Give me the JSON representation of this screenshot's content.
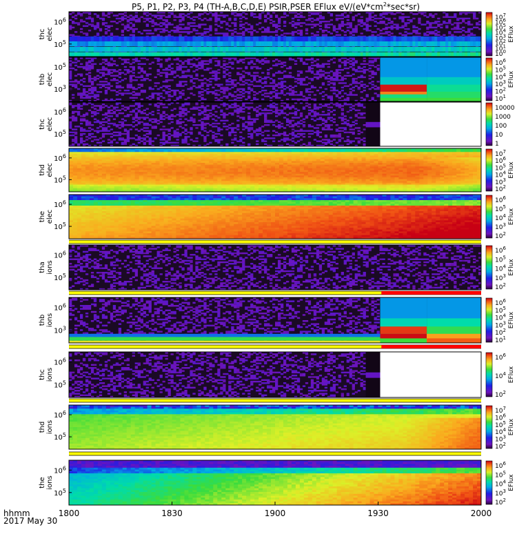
{
  "title": {
    "prefix": "P5, P1, P2, P3, P4 (TH-A,B,C,D,E) PSIR,PSER EFlux eV/(eV*cm",
    "sup": "2",
    "suffix": "*sec*sr)"
  },
  "x_axis": {
    "ticks": [
      "1800",
      "1830",
      "1900",
      "1930",
      "2000"
    ],
    "label_line1": "hhmm",
    "label_line2": "2017 May 30"
  },
  "chart_data": {
    "type": "heatmap",
    "title": "P5, P1, P2, P3, P4 (TH-A,B,C,D,E) PSIR,PSER EFlux eV/(eV*cm^2*sec*sr)",
    "x_range": [
      "18:00",
      "20:00"
    ],
    "x_ticks": [
      "1800",
      "1830",
      "1900",
      "1930",
      "2000"
    ],
    "panels": [
      {
        "name": "thc elec",
        "ylabel": [
          "thc",
          "elec"
        ],
        "y_ticks": [
          "10^6",
          "10^5"
        ],
        "colorbar_ticks": [
          "10^7",
          "10^6",
          "10^5",
          "10^4",
          "10^3",
          "10^2",
          "10^1",
          "10^0"
        ],
        "colorbar_label": "EFlux",
        "pattern": "noise_bands",
        "flag_bars": []
      },
      {
        "name": "thb elec",
        "ylabel": [
          "thb",
          "elec"
        ],
        "y_ticks": [
          "10^5",
          "10^3"
        ],
        "colorbar_ticks": [
          "10^6",
          "10^5",
          "10^4",
          "10^3",
          "10^2",
          "10^1"
        ],
        "colorbar_label": "EFlux",
        "pattern": "noise_then_blocks",
        "flag_bars": []
      },
      {
        "name": "thc elec (2)",
        "ylabel": [
          "thc",
          "elec"
        ],
        "y_ticks": [
          "10^6",
          "10^5"
        ],
        "colorbar_ticks": [
          "10000",
          "1000",
          "100",
          "10",
          "1"
        ],
        "colorbar_label": "",
        "pattern": "noise_then_blank",
        "flag_bars": []
      },
      {
        "name": "thd elec",
        "ylabel": [
          "thd",
          "elec"
        ],
        "y_ticks": [
          "10^6",
          "10^5"
        ],
        "colorbar_ticks": [
          "10^7",
          "10^6",
          "10^5",
          "10^4",
          "10^3",
          "10^2"
        ],
        "colorbar_label": "EFlux",
        "pattern": "warm_spectrum",
        "flag_bars": []
      },
      {
        "name": "the elec",
        "ylabel": [
          "the",
          "elec"
        ],
        "y_ticks": [
          "10^6",
          "10^5"
        ],
        "colorbar_ticks": [
          "10^6",
          "10^5",
          "10^4",
          "10^3",
          "10^2"
        ],
        "colorbar_label": "EFlux",
        "pattern": "hot_spectrum",
        "flag_bars": [
          "yellow"
        ]
      },
      {
        "name": "tha ions",
        "ylabel": [
          "tha",
          "ions"
        ],
        "y_ticks": [
          "10^6",
          "10^5"
        ],
        "colorbar_ticks": [
          "10^6",
          "10^5",
          "10^4",
          "10^3",
          "10^2"
        ],
        "colorbar_label": "EFlux",
        "pattern": "noise",
        "flag_bars": [
          "yellow",
          "red_late"
        ]
      },
      {
        "name": "thb ions",
        "ylabel": [
          "thb",
          "ions"
        ],
        "y_ticks": [
          "10^6",
          "10^3"
        ],
        "colorbar_ticks": [
          "10^6",
          "10^5",
          "10^4",
          "10^3",
          "10^2",
          "10^1"
        ],
        "colorbar_label": "EFlux",
        "pattern": "noise_bands_then_blocks",
        "flag_bars": [
          "yellow",
          "red_late"
        ]
      },
      {
        "name": "thc ions",
        "ylabel": [
          "thc",
          "ions"
        ],
        "y_ticks": [
          "10^6",
          "10^5"
        ],
        "colorbar_ticks": [
          "10^6",
          "10^4",
          "10^2"
        ],
        "colorbar_label": "EFlux",
        "pattern": "noise_then_blank",
        "flag_bars": [
          "yellow"
        ]
      },
      {
        "name": "thd ions",
        "ylabel": [
          "thd",
          "ions"
        ],
        "y_ticks": [
          "10^6",
          "10^5"
        ],
        "colorbar_ticks": [
          "10^7",
          "10^6",
          "10^5",
          "10^4",
          "10^3",
          "10^2"
        ],
        "colorbar_label": "EFlux",
        "pattern": "ion_spectrum",
        "flag_bars": [
          "yellow"
        ]
      },
      {
        "name": "the ions",
        "ylabel": [
          "the",
          "ions"
        ],
        "y_ticks": [
          "10^6",
          "10^5"
        ],
        "colorbar_ticks": [
          "10^6",
          "10^5",
          "10^4",
          "10^3",
          "10^2"
        ],
        "colorbar_label": "EFlux",
        "pattern": "cool_spectrum",
        "flag_bars": []
      }
    ]
  }
}
